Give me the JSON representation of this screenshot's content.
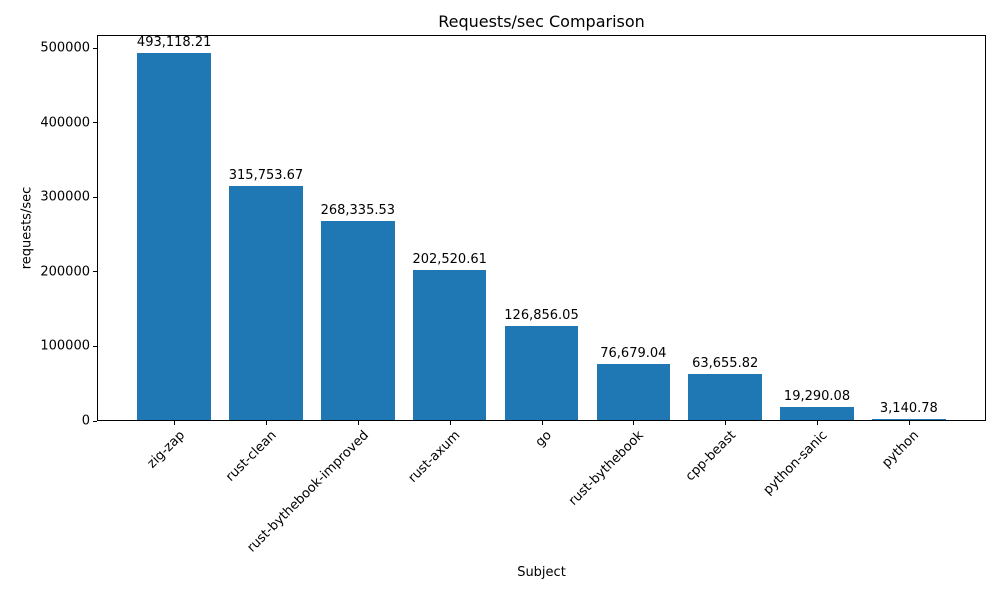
{
  "chart_data": {
    "type": "bar",
    "title": "Requests/sec Comparison",
    "xlabel": "Subject",
    "ylabel": "requests/sec",
    "categories": [
      "zig-zap",
      "rust-clean",
      "rust-bythebook-improved",
      "rust-axum",
      "go",
      "rust-bythebook",
      "cpp-beast",
      "python-sanic",
      "python"
    ],
    "values": [
      493118.21,
      315753.67,
      268335.53,
      202520.61,
      126856.05,
      76679.04,
      63655.82,
      19290.08,
      3140.78
    ],
    "value_labels": [
      "493,118.21",
      "315,753.67",
      "268,335.53",
      "202,520.61",
      "126,856.05",
      "76,679.04",
      "63,655.82",
      "19,290.08",
      "3,140.78"
    ],
    "y_ticks": [
      0,
      100000,
      200000,
      300000,
      400000,
      500000
    ],
    "y_tick_labels": [
      "0",
      "100000",
      "200000",
      "300000",
      "400000",
      "500000"
    ],
    "ylim": [
      0,
      517774
    ],
    "bar_color": "#1f77b4",
    "axis_color": "#000000",
    "background_color": "#ffffff",
    "grid": false,
    "legend_position": "none",
    "x_tick_rotation_deg": 45
  }
}
